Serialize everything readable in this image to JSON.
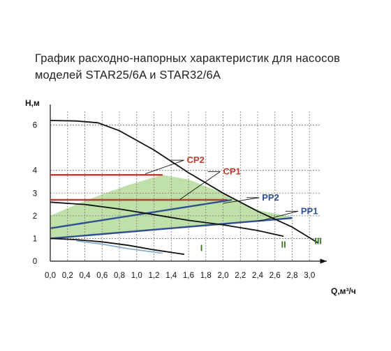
{
  "title_line1": "График  расходно-напорных  характеристик  для  насосов",
  "title_line2": "моделей STAR25/6A и STAR32/6A",
  "colors": {
    "curve": "#111111",
    "cp": "#c0392b",
    "pp": "#2f4f8f",
    "pp_light": "#7fa6d0",
    "area": "#bfe0a8",
    "speed_label": "#3a7a2a",
    "grid": "#777777"
  },
  "chart_data": {
    "type": "line",
    "xlabel": "Q,м³/ч",
    "ylabel": "H,м",
    "xlim": [
      0,
      3.2
    ],
    "ylim": [
      0,
      6.6
    ],
    "x_ticks": [
      "0,0",
      "0,2",
      "0,4",
      "0,6",
      "0,8",
      "1,0",
      "1,2",
      "1,4",
      "1,6",
      "1,8",
      "2,0",
      "2,2",
      "2,4",
      "2,6",
      "2,8",
      "3,0"
    ],
    "y_ticks": [
      "0",
      "1",
      "2",
      "3",
      "4",
      "6"
    ],
    "grid": true,
    "series": [
      {
        "name": "III",
        "x": [
          0,
          0.3,
          0.55,
          0.8,
          1.2,
          1.6,
          2.0,
          2.4,
          2.8,
          3.1
        ],
        "y": [
          6.2,
          6.18,
          6.1,
          5.75,
          4.9,
          3.9,
          3.0,
          2.2,
          1.5,
          0.8
        ]
      },
      {
        "name": "II",
        "x": [
          0,
          0.4,
          0.8,
          1.2,
          1.6,
          2.0,
          2.4,
          2.7
        ],
        "y": [
          2.6,
          2.5,
          2.3,
          2.05,
          1.8,
          1.6,
          1.35,
          1.1
        ]
      },
      {
        "name": "I",
        "x": [
          0,
          0.3,
          0.6,
          0.9,
          1.2,
          1.55
        ],
        "y": [
          1.0,
          0.95,
          0.85,
          0.7,
          0.5,
          0.3
        ]
      },
      {
        "name": "",
        "x": [
          0.3,
          0.6,
          0.9,
          1.3
        ],
        "y": [
          0.9,
          0.75,
          0.55,
          0.35
        ]
      }
    ],
    "control_lines": [
      {
        "name": "CP2",
        "x": [
          0,
          1.3
        ],
        "y": [
          3.8,
          3.8
        ]
      },
      {
        "name": "CP1",
        "x": [
          0,
          2.05
        ],
        "y": [
          2.7,
          2.7
        ]
      },
      {
        "name": "PP2",
        "x": [
          0,
          2.1
        ],
        "y": [
          1.45,
          2.7
        ]
      },
      {
        "name": "PP1",
        "x": [
          0,
          2.8
        ],
        "y": [
          1.0,
          1.9
        ]
      }
    ],
    "shaded_region": {
      "x": [
        0,
        0.3,
        0.6,
        0.9,
        1.2,
        1.3,
        1.6,
        2.0,
        2.4,
        2.8,
        2.8,
        1.4,
        0
      ],
      "y": [
        2.0,
        2.5,
        2.95,
        3.35,
        3.7,
        3.8,
        3.6,
        3.0,
        2.25,
        1.95,
        1.9,
        1.45,
        1.0
      ]
    },
    "speed_labels": [
      {
        "text": "I",
        "x": 1.75,
        "y": 0.6
      },
      {
        "text": "II",
        "x": 2.7,
        "y": 0.75
      },
      {
        "text": "III",
        "x": 3.1,
        "y": 0.9
      }
    ],
    "annotations": [
      {
        "text": "CP2",
        "x": 1.58,
        "y": 4.45,
        "target_x": 1.1,
        "target_y": 3.85
      },
      {
        "text": "CP1",
        "x": 2.0,
        "y": 3.95,
        "target_x": 1.5,
        "target_y": 2.72
      },
      {
        "text": "PP2",
        "x": 2.45,
        "y": 2.8,
        "target_x": 2.0,
        "target_y": 2.55
      },
      {
        "text": "PP1",
        "x": 2.9,
        "y": 2.2,
        "target_x": 2.4,
        "target_y": 1.75
      }
    ]
  }
}
